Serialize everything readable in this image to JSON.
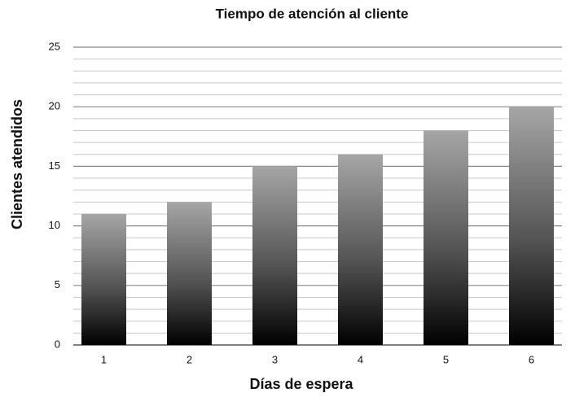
{
  "chart_data": {
    "type": "bar",
    "title": "Tiempo de atención al cliente",
    "x_label": "Días de espera",
    "y_label": "Clientes atendidos",
    "categories": [
      "1",
      "2",
      "3",
      "4",
      "5",
      "6"
    ],
    "values": [
      11,
      12,
      15,
      16,
      18,
      20
    ],
    "ylim": [
      0,
      25
    ],
    "yticks": [
      0,
      5,
      10,
      15,
      20,
      25
    ],
    "grid": true,
    "minor_grid": true
  }
}
